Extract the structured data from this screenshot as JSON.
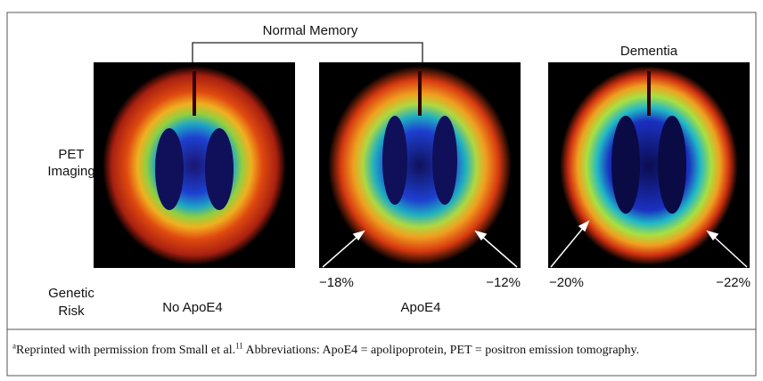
{
  "figure": {
    "group_label": "Normal Memory",
    "dementia_label": "Dementia",
    "row_labels": {
      "pet": [
        "PET",
        "Imaging"
      ],
      "genetic": [
        "Genetic",
        "Risk"
      ]
    },
    "panels": [
      {
        "risk": "No ApoE4"
      },
      {
        "risk": "ApoE4",
        "left_change": "−18%",
        "right_change": "−12%"
      },
      {
        "left_change": "−20%",
        "right_change": "−22%"
      }
    ]
  },
  "footnote": {
    "marker": "a",
    "text": "Reprinted with permission from Small et al.",
    "ref": "11",
    "rest": " Abbreviations: ApoE4 = apolipoprotein,  PET = positron emission tomography."
  }
}
